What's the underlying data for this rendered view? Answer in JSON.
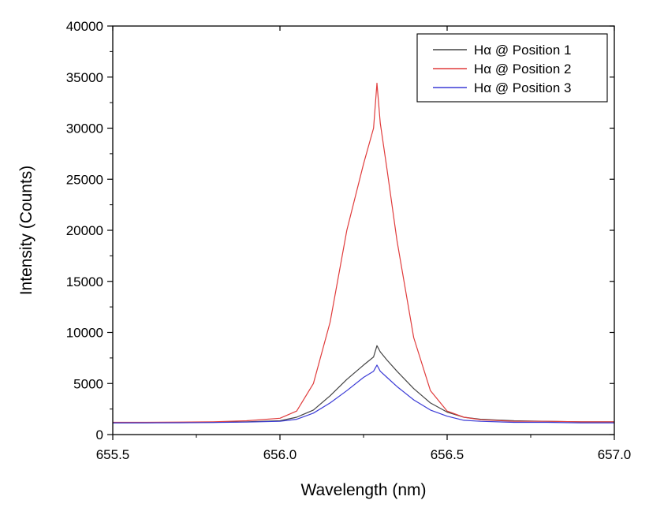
{
  "chart_data": {
    "type": "line",
    "title": "",
    "xlabel": "Wavelength (nm)",
    "ylabel": "Intensity (Counts)",
    "xlim": [
      655.5,
      657.0
    ],
    "ylim": [
      0,
      40000
    ],
    "x_ticks": [
      "655.5",
      "656.0",
      "656.5",
      "657.0"
    ],
    "x_tick_values": [
      655.5,
      656.0,
      656.5,
      657.0
    ],
    "y_ticks": [
      "0",
      "5000",
      "10000",
      "15000",
      "20000",
      "25000",
      "30000",
      "35000",
      "40000"
    ],
    "y_tick_values": [
      0,
      5000,
      10000,
      15000,
      20000,
      25000,
      30000,
      35000,
      40000
    ],
    "grid": false,
    "legend_position": "top-right",
    "x": [
      655.5,
      655.6,
      655.7,
      655.8,
      655.9,
      656.0,
      656.05,
      656.1,
      656.15,
      656.2,
      656.25,
      656.28,
      656.29,
      656.3,
      656.32,
      656.35,
      656.4,
      656.45,
      656.5,
      656.55,
      656.6,
      656.7,
      656.8,
      656.9,
      657.0
    ],
    "series": [
      {
        "name": "Hα @ Position 1",
        "color": "#444444",
        "values": [
          1150,
          1160,
          1180,
          1200,
          1250,
          1350,
          1700,
          2400,
          3800,
          5400,
          6800,
          7600,
          8700,
          8100,
          7300,
          6200,
          4500,
          3100,
          2200,
          1700,
          1500,
          1350,
          1300,
          1250,
          1250
        ]
      },
      {
        "name": "Hα @ Position 2",
        "color": "#e03c3c",
        "values": [
          1200,
          1200,
          1220,
          1250,
          1350,
          1600,
          2300,
          5000,
          11000,
          20000,
          26500,
          30000,
          34400,
          30500,
          26000,
          19000,
          9500,
          4300,
          2300,
          1700,
          1450,
          1300,
          1300,
          1250,
          1250
        ]
      },
      {
        "name": "Hα @ Position 3",
        "color": "#3b3bd6",
        "values": [
          1150,
          1150,
          1160,
          1180,
          1220,
          1300,
          1500,
          2100,
          3100,
          4300,
          5600,
          6200,
          6800,
          6200,
          5600,
          4700,
          3400,
          2400,
          1800,
          1400,
          1300,
          1200,
          1200,
          1150,
          1150
        ]
      }
    ]
  }
}
